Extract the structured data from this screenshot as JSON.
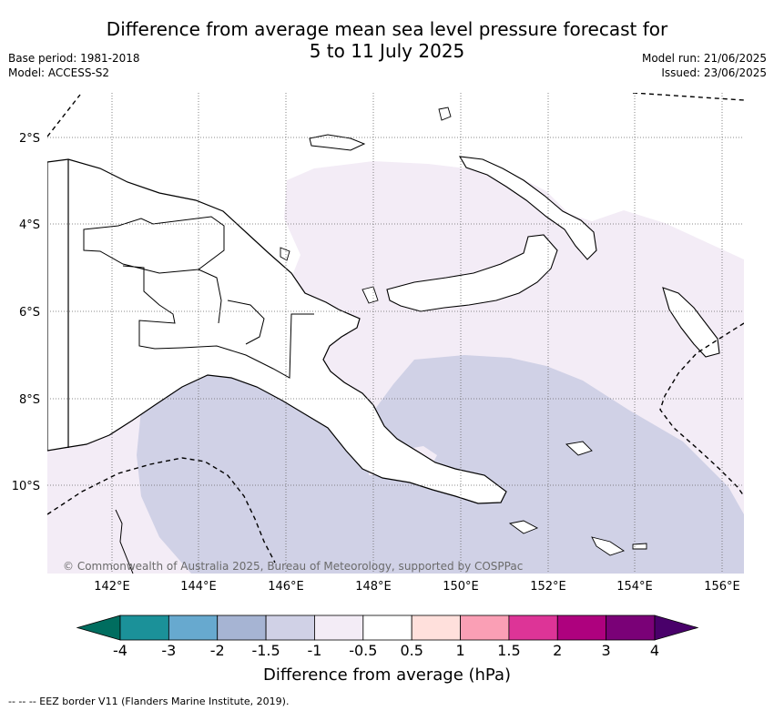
{
  "header": {
    "title_line1": "Difference from average mean sea level pressure forecast for",
    "title_line2": "5 to 11 July 2025",
    "base_period": "Base period: 1981-2018",
    "model": "Model: ACCESS-S2",
    "model_run": "Model run: 21/06/2025",
    "issued": "Issued: 23/06/2025"
  },
  "map": {
    "region": "Papua New Guinea",
    "lat_labels": [
      "2°S",
      "4°S",
      "6°S",
      "8°S",
      "10°S"
    ],
    "lon_labels": [
      "142°E",
      "144°E",
      "146°E",
      "148°E",
      "150°E",
      "152°E",
      "154°E",
      "156°E"
    ],
    "copyright": "© Commonwealth of Australia 2025, Bureau of Meteorology, supported by COSPPac",
    "colors": {
      "anomaly_minus_0_5_to_minus_1": "#f3ecf6",
      "anomaly_minus_1_to_minus_1_5": "#d0d1e6",
      "land_fill": "#ffffff",
      "coast": "#000000",
      "gridline": "#666666"
    }
  },
  "colorbar": {
    "ticks": [
      "-4",
      "-3",
      "-2",
      "-1.5",
      "-1",
      "-0.5",
      "0.5",
      "1",
      "1.5",
      "2",
      "3",
      "4"
    ],
    "colors": [
      "#006d5f",
      "#1b9199",
      "#67a9cf",
      "#a6b4d3",
      "#d0d1e6",
      "#f3ecf6",
      "#ffffff",
      "#ffe0dc",
      "#fa9fb5",
      "#dd3497",
      "#ae017e",
      "#7a0177",
      "#49006a"
    ],
    "title": "Difference from average (hPa)"
  },
  "footer": {
    "eez_note": "--  --  -- EEZ border V11 (Flanders Marine Institute, 2019)."
  }
}
